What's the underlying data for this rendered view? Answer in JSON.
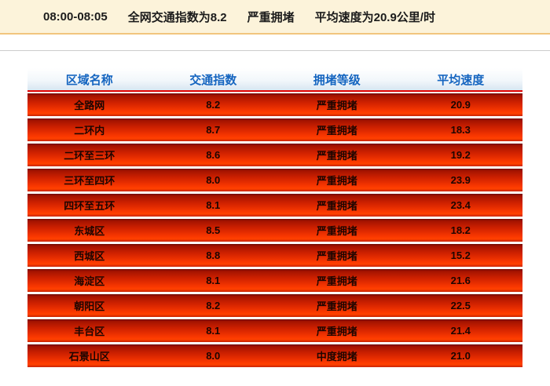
{
  "status_bar": {
    "time_range": "08:00-08:05",
    "network_index_text": "全网交通指数为8.2",
    "congestion_level_text": "严重拥堵",
    "average_speed_text": "平均速度为20.9公里/时"
  },
  "table": {
    "headers": {
      "region": "区域名称",
      "index": "交通指数",
      "level": "拥堵等级",
      "speed": "平均速度"
    },
    "rows": [
      {
        "region": "全路网",
        "index": "8.2",
        "level": "严重拥堵",
        "speed": "20.9"
      },
      {
        "region": "二环内",
        "index": "8.7",
        "level": "严重拥堵",
        "speed": "18.3"
      },
      {
        "region": "二环至三环",
        "index": "8.6",
        "level": "严重拥堵",
        "speed": "19.2"
      },
      {
        "region": "三环至四环",
        "index": "8.0",
        "level": "严重拥堵",
        "speed": "23.9"
      },
      {
        "region": "四环至五环",
        "index": "8.1",
        "level": "严重拥堵",
        "speed": "23.4"
      },
      {
        "region": "东城区",
        "index": "8.5",
        "level": "严重拥堵",
        "speed": "18.2"
      },
      {
        "region": "西城区",
        "index": "8.8",
        "level": "严重拥堵",
        "speed": "15.2"
      },
      {
        "region": "海淀区",
        "index": "8.1",
        "level": "严重拥堵",
        "speed": "21.6"
      },
      {
        "region": "朝阳区",
        "index": "8.2",
        "level": "严重拥堵",
        "speed": "22.5"
      },
      {
        "region": "丰台区",
        "index": "8.1",
        "level": "严重拥堵",
        "speed": "21.4"
      },
      {
        "region": "石景山区",
        "index": "8.0",
        "level": "中度拥堵",
        "speed": "21.0"
      }
    ]
  },
  "colors": {
    "banner_background": "#fcf3da",
    "banner_border": "#f2c57e",
    "banner_text": "#1b1b1b",
    "header_text_blue": "#1565c0",
    "header_underline_red": "#e00000",
    "row_red_top": "#6f0900",
    "row_red_bright": "#ff4200",
    "row_text": "#1d0500"
  }
}
